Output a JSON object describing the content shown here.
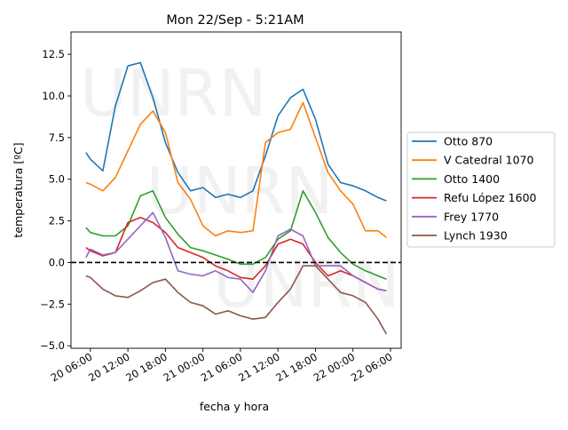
{
  "chart_data": {
    "type": "line",
    "title": "Mon 22/Sep - 5:21AM",
    "xlabel": "fecha y hora",
    "ylabel": "temperatura [ºC]",
    "watermark": "UNRN",
    "x_unit": "hours since 20 00:00",
    "xlim": [
      2.9,
      55.7
    ],
    "ylim": [
      -5.15,
      13.84
    ],
    "xticks": [
      {
        "value": 6,
        "label": "20 06:00"
      },
      {
        "value": 12,
        "label": "20 12:00"
      },
      {
        "value": 18,
        "label": "20 18:00"
      },
      {
        "value": 24,
        "label": "21 00:00"
      },
      {
        "value": 30,
        "label": "21 06:00"
      },
      {
        "value": 36,
        "label": "21 12:00"
      },
      {
        "value": 42,
        "label": "21 18:00"
      },
      {
        "value": 48,
        "label": "22 00:00"
      },
      {
        "value": 54,
        "label": "22 06:00"
      }
    ],
    "yticks": [
      {
        "value": -5.0,
        "label": "−5.0"
      },
      {
        "value": -2.5,
        "label": "−2.5"
      },
      {
        "value": 0.0,
        "label": "0.0"
      },
      {
        "value": 2.5,
        "label": "2.5"
      },
      {
        "value": 5.0,
        "label": "5.0"
      },
      {
        "value": 7.5,
        "label": "7.5"
      },
      {
        "value": 10.0,
        "label": "10.0"
      },
      {
        "value": 12.5,
        "label": "12.5"
      }
    ],
    "hline": {
      "y": 0,
      "style": "dashed",
      "color": "#000000"
    },
    "legend_position": "center-right outside",
    "x": [
      5.3,
      6,
      8,
      10,
      12,
      14,
      16,
      18,
      20,
      22,
      24,
      26,
      28,
      30,
      32,
      34,
      36,
      38,
      40,
      42,
      44,
      46,
      48,
      50,
      52,
      53.35
    ],
    "series": [
      {
        "name": "Otto 870",
        "color": "#1f77b4",
        "values": [
          6.6,
          6.2,
          5.5,
          9.4,
          11.8,
          12.0,
          9.9,
          7.2,
          5.4,
          4.3,
          4.5,
          3.9,
          4.1,
          3.9,
          4.3,
          6.4,
          8.8,
          9.9,
          10.4,
          8.6,
          5.9,
          4.8,
          4.6,
          4.3,
          3.9,
          3.7
        ]
      },
      {
        "name": "V Catedral 1070",
        "color": "#ff7f0e",
        "values": [
          4.8,
          4.7,
          4.3,
          5.1,
          6.7,
          8.3,
          9.1,
          7.8,
          4.8,
          3.8,
          2.2,
          1.6,
          1.9,
          1.8,
          1.9,
          7.2,
          7.8,
          8.0,
          9.6,
          7.5,
          5.4,
          4.3,
          3.5,
          1.9,
          1.9,
          1.5
        ]
      },
      {
        "name": "Otto 1400",
        "color": "#2ca02c",
        "values": [
          2.1,
          1.8,
          1.6,
          1.6,
          2.2,
          4.0,
          4.3,
          2.7,
          1.7,
          0.9,
          0.7,
          0.45,
          0.2,
          -0.1,
          -0.1,
          0.3,
          1.4,
          1.9,
          4.3,
          3.0,
          1.5,
          0.6,
          -0.1,
          -0.5,
          -0.8,
          -1.0
        ]
      },
      {
        "name": "Refu López 1600",
        "color": "#d62728",
        "values": [
          0.9,
          0.7,
          0.4,
          0.6,
          2.4,
          2.7,
          2.4,
          1.8,
          0.9,
          0.6,
          0.3,
          -0.2,
          -0.5,
          -0.9,
          -1.0,
          -0.2,
          1.1,
          1.4,
          1.1,
          0.0,
          -0.8,
          -0.5,
          -0.8,
          -1.2,
          -1.6,
          -1.7
        ]
      },
      {
        "name": "Frey 1770",
        "color": "#9467bd",
        "values": [
          0.3,
          0.8,
          0.45,
          0.6,
          1.4,
          2.2,
          3.0,
          1.5,
          -0.5,
          -0.7,
          -0.8,
          -0.5,
          -0.9,
          -1.0,
          -1.8,
          -0.5,
          1.6,
          2.0,
          1.6,
          -0.2,
          -0.2,
          -0.2,
          -0.8,
          -1.2,
          -1.6,
          -1.7
        ]
      },
      {
        "name": "Lynch 1930",
        "color": "#8c564b",
        "values": [
          -0.8,
          -0.9,
          -1.6,
          -2.0,
          -2.1,
          -1.7,
          -1.2,
          -1.0,
          -1.8,
          -2.4,
          -2.6,
          -3.1,
          -2.9,
          -3.2,
          -3.4,
          -3.3,
          -2.4,
          -1.6,
          -0.2,
          -0.2,
          -1.0,
          -1.8,
          -2.0,
          -2.4,
          -3.4,
          -4.3
        ]
      }
    ]
  }
}
